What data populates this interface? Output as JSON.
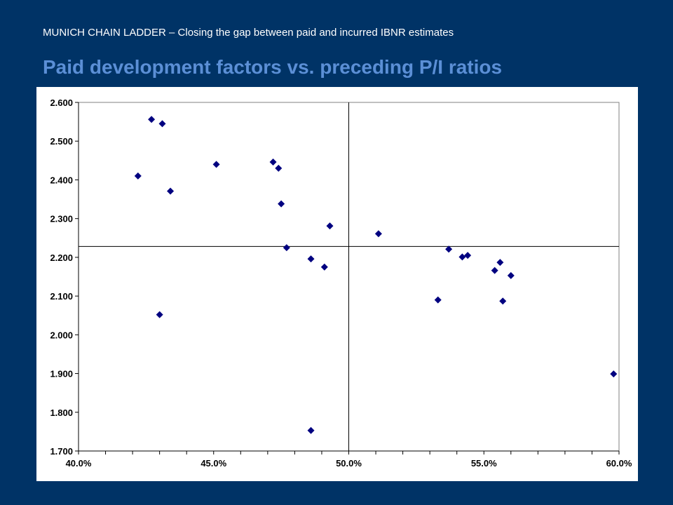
{
  "header": {
    "subtitle": "MUNICH CHAIN LADDER – Closing the gap between paid and incurred IBNR estimates",
    "title": "Paid development factors vs. preceding P/I ratios"
  },
  "colors": {
    "background": "#003366",
    "title": "#5b8fd6",
    "marker": "#000080"
  },
  "chart_data": {
    "type": "scatter",
    "title": "",
    "xlabel": "",
    "ylabel": "",
    "xlim": [
      0.4,
      0.6
    ],
    "ylim": [
      1.7,
      2.6
    ],
    "x_ticks": [
      0.4,
      0.45,
      0.5,
      0.55,
      0.6
    ],
    "x_tick_labels": [
      "40.0%",
      "45.0%",
      "50.0%",
      "55.0%",
      "60.0%"
    ],
    "x_minor_step": 0.01,
    "y_ticks": [
      1.7,
      1.8,
      1.9,
      2.0,
      2.1,
      2.2,
      2.3,
      2.4,
      2.5,
      2.6
    ],
    "y_tick_labels": [
      "1.700",
      "1.800",
      "1.900",
      "2.000",
      "2.100",
      "2.200",
      "2.300",
      "2.400",
      "2.500",
      "2.600"
    ],
    "reference_lines": {
      "x": 0.5,
      "y": 2.228
    },
    "grid": false,
    "legend": "none",
    "marker": "diamond",
    "series": [
      {
        "points": [
          {
            "x": 0.422,
            "y": 2.41
          },
          {
            "x": 0.427,
            "y": 2.556
          },
          {
            "x": 0.431,
            "y": 2.545
          },
          {
            "x": 0.434,
            "y": 2.371
          },
          {
            "x": 0.43,
            "y": 2.052
          },
          {
            "x": 0.451,
            "y": 2.44
          },
          {
            "x": 0.472,
            "y": 2.446
          },
          {
            "x": 0.474,
            "y": 2.43
          },
          {
            "x": 0.475,
            "y": 2.338
          },
          {
            "x": 0.477,
            "y": 2.225
          },
          {
            "x": 0.486,
            "y": 2.196
          },
          {
            "x": 0.491,
            "y": 2.175
          },
          {
            "x": 0.493,
            "y": 2.281
          },
          {
            "x": 0.486,
            "y": 1.753
          },
          {
            "x": 0.511,
            "y": 2.261
          },
          {
            "x": 0.533,
            "y": 2.09
          },
          {
            "x": 0.537,
            "y": 2.221
          },
          {
            "x": 0.542,
            "y": 2.201
          },
          {
            "x": 0.544,
            "y": 2.205
          },
          {
            "x": 0.554,
            "y": 2.166
          },
          {
            "x": 0.556,
            "y": 2.187
          },
          {
            "x": 0.557,
            "y": 2.087
          },
          {
            "x": 0.56,
            "y": 2.153
          },
          {
            "x": 0.598,
            "y": 1.899
          }
        ]
      }
    ]
  }
}
